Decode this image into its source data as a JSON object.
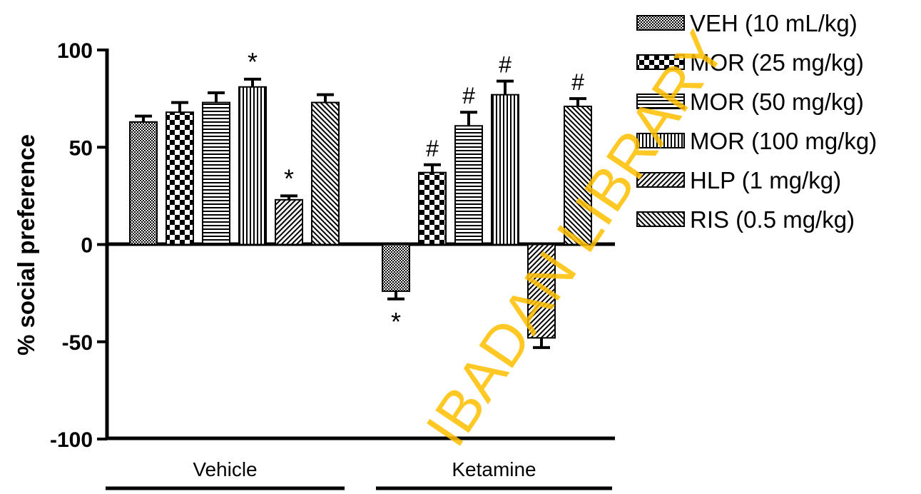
{
  "chart_data": {
    "type": "bar",
    "ylabel": "% social preference",
    "ylim": [
      -100,
      100
    ],
    "yticks": [
      100,
      50,
      0,
      -50,
      -100
    ],
    "groups": [
      "Vehicle",
      "Ketamine"
    ],
    "series": [
      {
        "name": "VEH (10 mL/kg)",
        "pattern": "checker-fine",
        "values": [
          63,
          -24
        ],
        "errors": [
          3,
          4
        ],
        "marks": [
          "",
          "*"
        ]
      },
      {
        "name": "MOR (25 mg/kg)",
        "pattern": "checker-coarse",
        "values": [
          68,
          37
        ],
        "errors": [
          5,
          4
        ],
        "marks": [
          "",
          "#"
        ]
      },
      {
        "name": "MOR (50 mg/kg)",
        "pattern": "horizontal",
        "values": [
          73,
          61
        ],
        "errors": [
          5,
          7
        ],
        "marks": [
          "",
          "#"
        ]
      },
      {
        "name": "MOR (100 mg/kg)",
        "pattern": "vertical",
        "values": [
          81,
          77
        ],
        "errors": [
          4,
          7
        ],
        "marks": [
          "*",
          "#"
        ]
      },
      {
        "name": "HLP (1 mg/kg)",
        "pattern": "diagonal-up",
        "values": [
          23,
          -48
        ],
        "errors": [
          2,
          5
        ],
        "marks": [
          "*",
          ""
        ]
      },
      {
        "name": "RIS (0.5 mg/kg)",
        "pattern": "diagonal-down",
        "values": [
          73,
          71
        ],
        "errors": [
          4,
          4
        ],
        "marks": [
          "",
          "#"
        ]
      }
    ]
  },
  "watermark": "IBADAN LIBRARY"
}
